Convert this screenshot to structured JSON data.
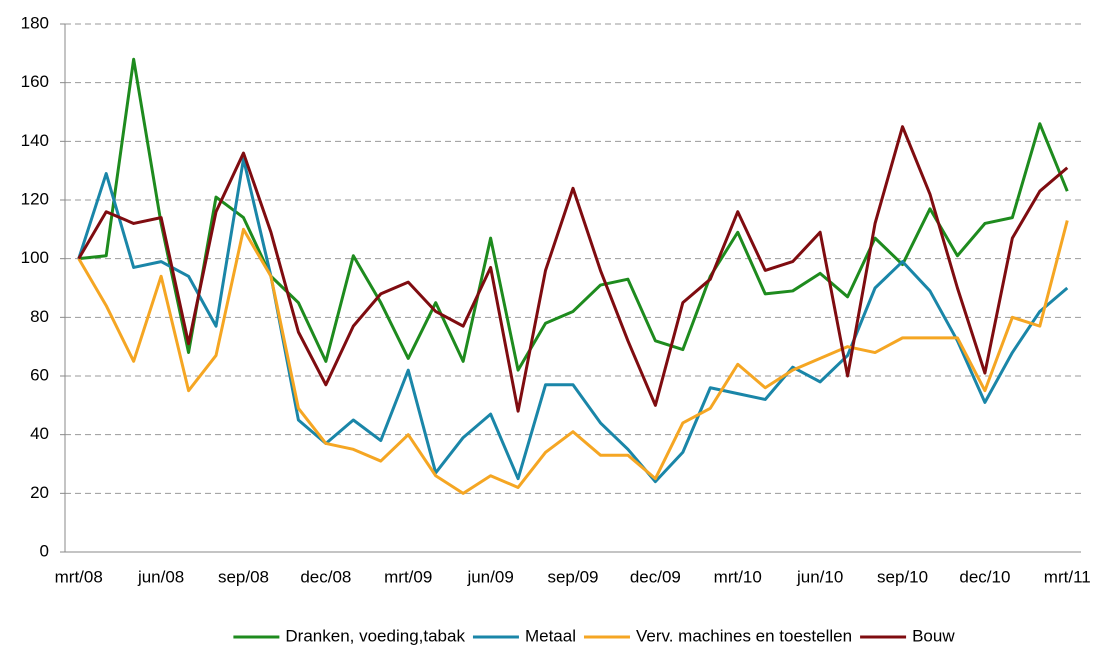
{
  "chart_data": {
    "type": "line",
    "categories": [
      "mrt/08",
      null,
      null,
      "jun/08",
      null,
      null,
      "sep/08",
      null,
      null,
      "dec/08",
      null,
      null,
      "mrt/09",
      null,
      null,
      "jun/09",
      null,
      null,
      "sep/09",
      null,
      null,
      "dec/09",
      null,
      null,
      "mrt/10",
      null,
      null,
      "jun/10",
      null,
      null,
      "sep/10",
      null,
      null,
      "dec/10",
      null,
      null,
      "mrt/11"
    ],
    "series": [
      {
        "name": "Dranken, voeding,tabak",
        "color": "#1e8b1e",
        "values": [
          100,
          101,
          168,
          112,
          68,
          121,
          114,
          94,
          85,
          65,
          101,
          85,
          66,
          85,
          65,
          107,
          62,
          78,
          82,
          91,
          93,
          72,
          69,
          94,
          109,
          88,
          89,
          95,
          87,
          107,
          98,
          117,
          101,
          112,
          114,
          146,
          123
        ]
      },
      {
        "name": "Metaal",
        "color": "#1a86a8",
        "values": [
          100,
          129,
          97,
          99,
          94,
          77,
          134,
          94,
          45,
          37,
          45,
          38,
          62,
          27,
          39,
          47,
          25,
          57,
          57,
          44,
          35,
          24,
          34,
          56,
          54,
          52,
          63,
          58,
          67,
          90,
          99,
          89,
          72,
          51,
          68,
          82,
          90
        ]
      },
      {
        "name": "Verv. machines en toestellen",
        "color": "#f5a623",
        "values": [
          100,
          84,
          65,
          94,
          55,
          67,
          110,
          94,
          49,
          37,
          35,
          31,
          40,
          26,
          20,
          26,
          22,
          34,
          41,
          33,
          33,
          25,
          44,
          49,
          64,
          56,
          62,
          66,
          70,
          68,
          73,
          73,
          73,
          55,
          80,
          77,
          113
        ]
      },
      {
        "name": "Bouw",
        "color": "#7f0c10",
        "values": [
          100,
          116,
          112,
          114,
          71,
          116,
          136,
          109,
          75,
          57,
          77,
          88,
          92,
          82,
          77,
          97,
          48,
          96,
          124,
          96,
          72,
          50,
          85,
          93,
          116,
          96,
          99,
          109,
          60,
          112,
          145,
          122,
          90,
          61,
          107,
          123,
          131
        ]
      }
    ],
    "ylim": [
      0,
      180
    ],
    "yticks": [
      0,
      20,
      40,
      60,
      80,
      100,
      120,
      140,
      160,
      180
    ],
    "grid": true,
    "legend": "bottom"
  }
}
